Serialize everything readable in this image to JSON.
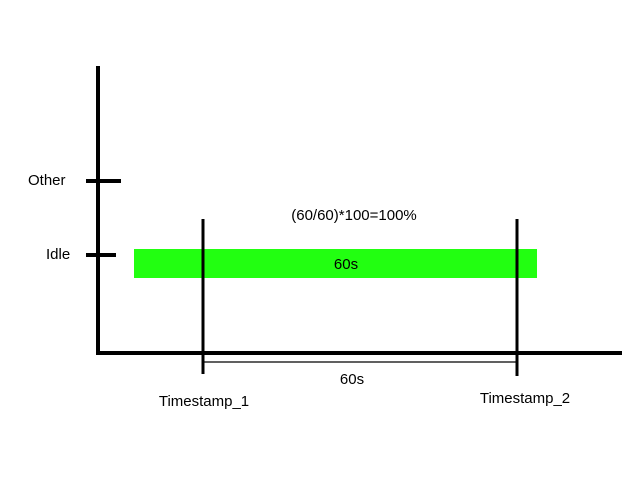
{
  "colors": {
    "background": "#ffffff",
    "line": "#000000",
    "bar": "#22ff11",
    "text": "#000000"
  },
  "y_axis": {
    "categories": [
      "Other",
      "Idle"
    ]
  },
  "bar": {
    "state": "Idle",
    "label": "60s"
  },
  "formula": "(60/60)*100=100%",
  "interval": {
    "label": "60s"
  },
  "timestamps": [
    "Timestamp_1",
    "Timestamp_2"
  ]
}
